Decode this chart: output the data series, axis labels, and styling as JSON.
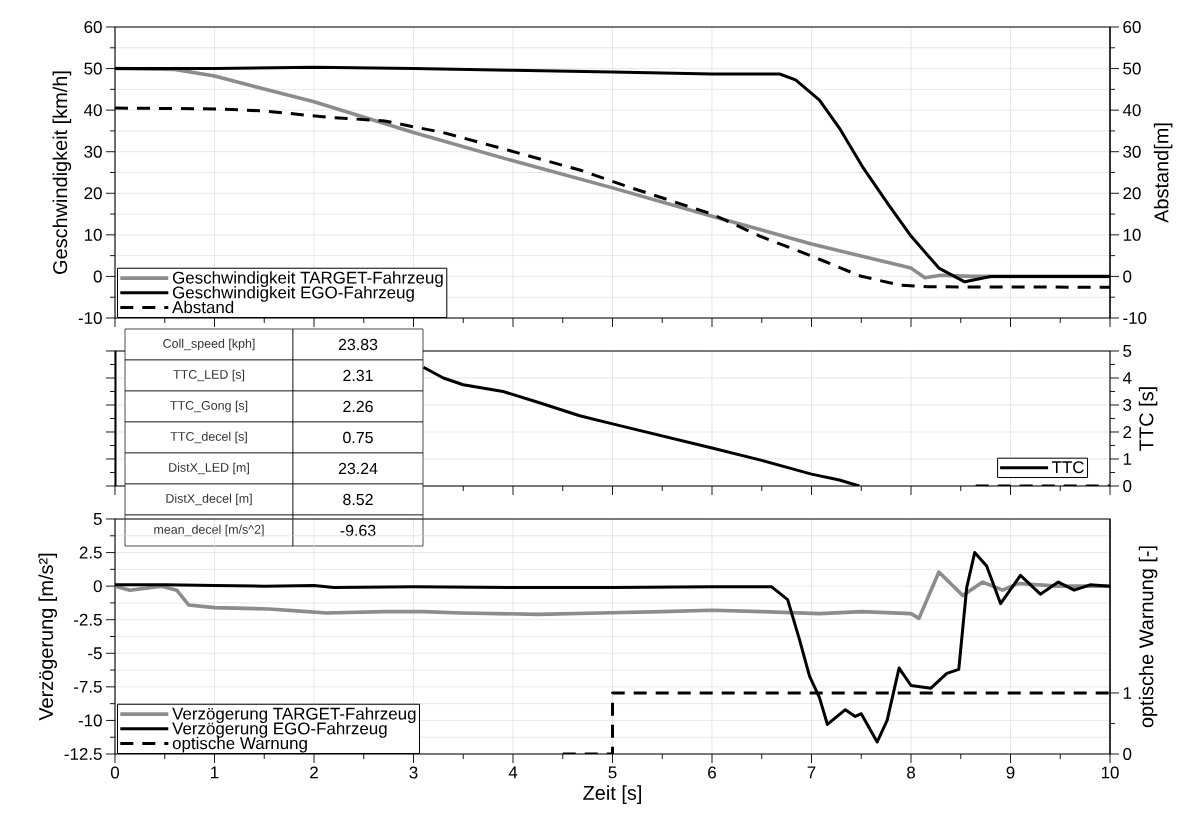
{
  "chart_data": [
    {
      "type": "line",
      "xlim": [
        0,
        10
      ],
      "xticks": [
        0,
        1,
        2,
        3,
        4,
        5,
        6,
        7,
        8,
        9,
        10
      ],
      "ylim": [
        -10,
        60
      ],
      "yticks": [
        -10,
        0,
        10,
        20,
        30,
        40,
        50,
        60
      ],
      "y2lim": [
        -10,
        60
      ],
      "y2ticks": [
        -10,
        0,
        10,
        20,
        30,
        40,
        50,
        60
      ],
      "ylabel": "Geschwindigkeit [km/h]",
      "y2label": "Abstand[m]",
      "grid": true,
      "legend": "bottom left",
      "tick_labels": "y",
      "series": [
        {
          "name": "Geschwindigkeit TARGET-Fahrzeug",
          "color": "#8c8c8c",
          "x": [
            0,
            0.6,
            1,
            2,
            3,
            4,
            5,
            6,
            7,
            8,
            8.14,
            8.3,
            8.6,
            10
          ],
          "values": [
            50,
            49.8,
            48.2,
            42,
            34.6,
            27.8,
            21.3,
            14.5,
            7.8,
            2,
            -0.3,
            0.3,
            0,
            0
          ]
        },
        {
          "name": "Geschwindigkeit EGO-Fahrzeug",
          "color": "#000000",
          "x": [
            0,
            1,
            2,
            3,
            4,
            5,
            6,
            6.68,
            6.84,
            7.08,
            7.28,
            7.52,
            7.77,
            8,
            8.28,
            8.54,
            8.8,
            10
          ],
          "values": [
            50,
            50,
            50.3,
            50,
            49.6,
            49.2,
            48.7,
            48.7,
            47.3,
            42.4,
            35.7,
            26.1,
            17.4,
            9.7,
            2,
            -1.3,
            0,
            0
          ]
        },
        {
          "name": "Abstand",
          "color": "#000000",
          "axis": "y2",
          "line_style": "dashed",
          "x": [
            0,
            1,
            1.5,
            2.13,
            2.71,
            3,
            3.3,
            3.87,
            4.67,
            5.19,
            6,
            6.48,
            7,
            7.49,
            7.89,
            8.17,
            10
          ],
          "values": [
            40.5,
            40.3,
            39.8,
            38.3,
            37.4,
            36,
            34.6,
            30.9,
            25.6,
            21.3,
            15,
            9.7,
            4.9,
            0.1,
            -2.1,
            -2.5,
            -2.6
          ]
        }
      ]
    },
    {
      "type": "line",
      "xlim": [
        0,
        10
      ],
      "xticks": [
        0,
        1,
        2,
        3,
        4,
        5,
        6,
        7,
        8,
        9,
        10
      ],
      "ylim": [
        0,
        5
      ],
      "yticks": [
        0,
        1,
        2,
        3,
        4,
        5
      ],
      "ylabel": "TTC [s]",
      "grid": true,
      "legend": "bottom right",
      "tick_labels": "y",
      "annotations": [
        "Coll_speed [kph]",
        "23.83",
        "TTC_LED [s]",
        "2.31",
        "TTC_Gong [s]",
        "2.26",
        "TTC_decel [s]",
        "0.75",
        "DistX_LED [m]",
        "23.24",
        "DistX_decel [m]",
        "8.52",
        "mean_decel [m/s^2]",
        "-9.63"
      ],
      "series": [
        {
          "name": "TTC",
          "color": "#000000",
          "x": [
            0,
            0,
            1.5,
            3.1,
            3.3,
            3.5,
            3.9,
            4.25,
            4.67,
            5,
            6,
            6.5,
            7,
            7.28,
            7.48
          ],
          "values": [
            5,
            0,
            null,
            4.4,
            4.0,
            3.75,
            3.5,
            3.1,
            2.6,
            2.3,
            1.41,
            0.95,
            0.44,
            0.22,
            0
          ]
        },
        {
          "color": "#000000",
          "line_style": "dashed",
          "x": [
            8.65,
            10
          ],
          "values": [
            0,
            0
          ]
        }
      ]
    },
    {
      "type": "line",
      "xlim": [
        0,
        10
      ],
      "xticks": [
        0,
        1,
        2,
        3,
        4,
        5,
        6,
        7,
        8,
        9,
        10
      ],
      "ylim": [
        -12.5,
        5
      ],
      "yticks": [
        -12.5,
        -10,
        -7.5,
        -5,
        -2.5,
        0,
        2.5,
        5
      ],
      "y2lim": [
        0,
        3.85
      ],
      "y2ticks": [
        0,
        1
      ],
      "xlabel": "Zeit [s]",
      "ylabel": "Verzögerung [m/s²]",
      "y2label": "optische Warnung [-]",
      "grid": true,
      "legend": "bottom left",
      "series": [
        {
          "name": "Verzögerung TARGET-Fahrzeug",
          "color": "#8c8c8c",
          "x": [
            0,
            0.15,
            0.47,
            0.62,
            0.74,
            1,
            1.55,
            1.93,
            2.13,
            2.71,
            3.1,
            3.48,
            4.25,
            4.87,
            5.5,
            6,
            6.5,
            7.08,
            7.5,
            8,
            8.08,
            8.28,
            8.52,
            8.72,
            8.92,
            9.08,
            9.48,
            10
          ],
          "values": [
            0,
            -0.3,
            0,
            -0.3,
            -1.4,
            -1.6,
            -1.7,
            -1.9,
            -2,
            -1.9,
            -1.9,
            -2,
            -2.1,
            -2,
            -1.9,
            -1.8,
            -1.9,
            -2.05,
            -1.9,
            -2.05,
            -2.4,
            1.05,
            -0.7,
            0.3,
            -0.3,
            0.2,
            0,
            0
          ]
        },
        {
          "name": "Verzögerung EGO-Fahrzeug",
          "color": "#000000",
          "x": [
            0,
            0.5,
            1,
            1.5,
            2,
            2.2,
            3,
            4,
            5,
            6,
            6.6,
            6.76,
            6.88,
            6.98,
            7.08,
            7.16,
            7.34,
            7.44,
            7.5,
            7.66,
            7.76,
            7.88,
            8,
            8.2,
            8.36,
            8.48,
            8.56,
            8.64,
            8.76,
            8.9,
            9.1,
            9.3,
            9.48,
            9.64,
            9.8,
            10
          ],
          "values": [
            0.1,
            0.1,
            0.05,
            0,
            0.05,
            -0.1,
            -0.05,
            -0.1,
            -0.1,
            -0.05,
            -0.05,
            -1,
            -4,
            -6.7,
            -8.3,
            -10.3,
            -9.2,
            -9.7,
            -9.5,
            -11.6,
            -10,
            -6.1,
            -7.4,
            -7.6,
            -6.5,
            -6.2,
            -0.1,
            2.5,
            1.5,
            -1.3,
            0.8,
            -0.6,
            0.3,
            -0.3,
            0.1,
            0
          ]
        },
        {
          "name": "optische Warnung",
          "color": "#000000",
          "axis": "y2",
          "line_style": "dashed",
          "x": [
            4.5,
            5,
            5,
            10
          ],
          "values": [
            0,
            0,
            1,
            1
          ]
        }
      ]
    }
  ]
}
